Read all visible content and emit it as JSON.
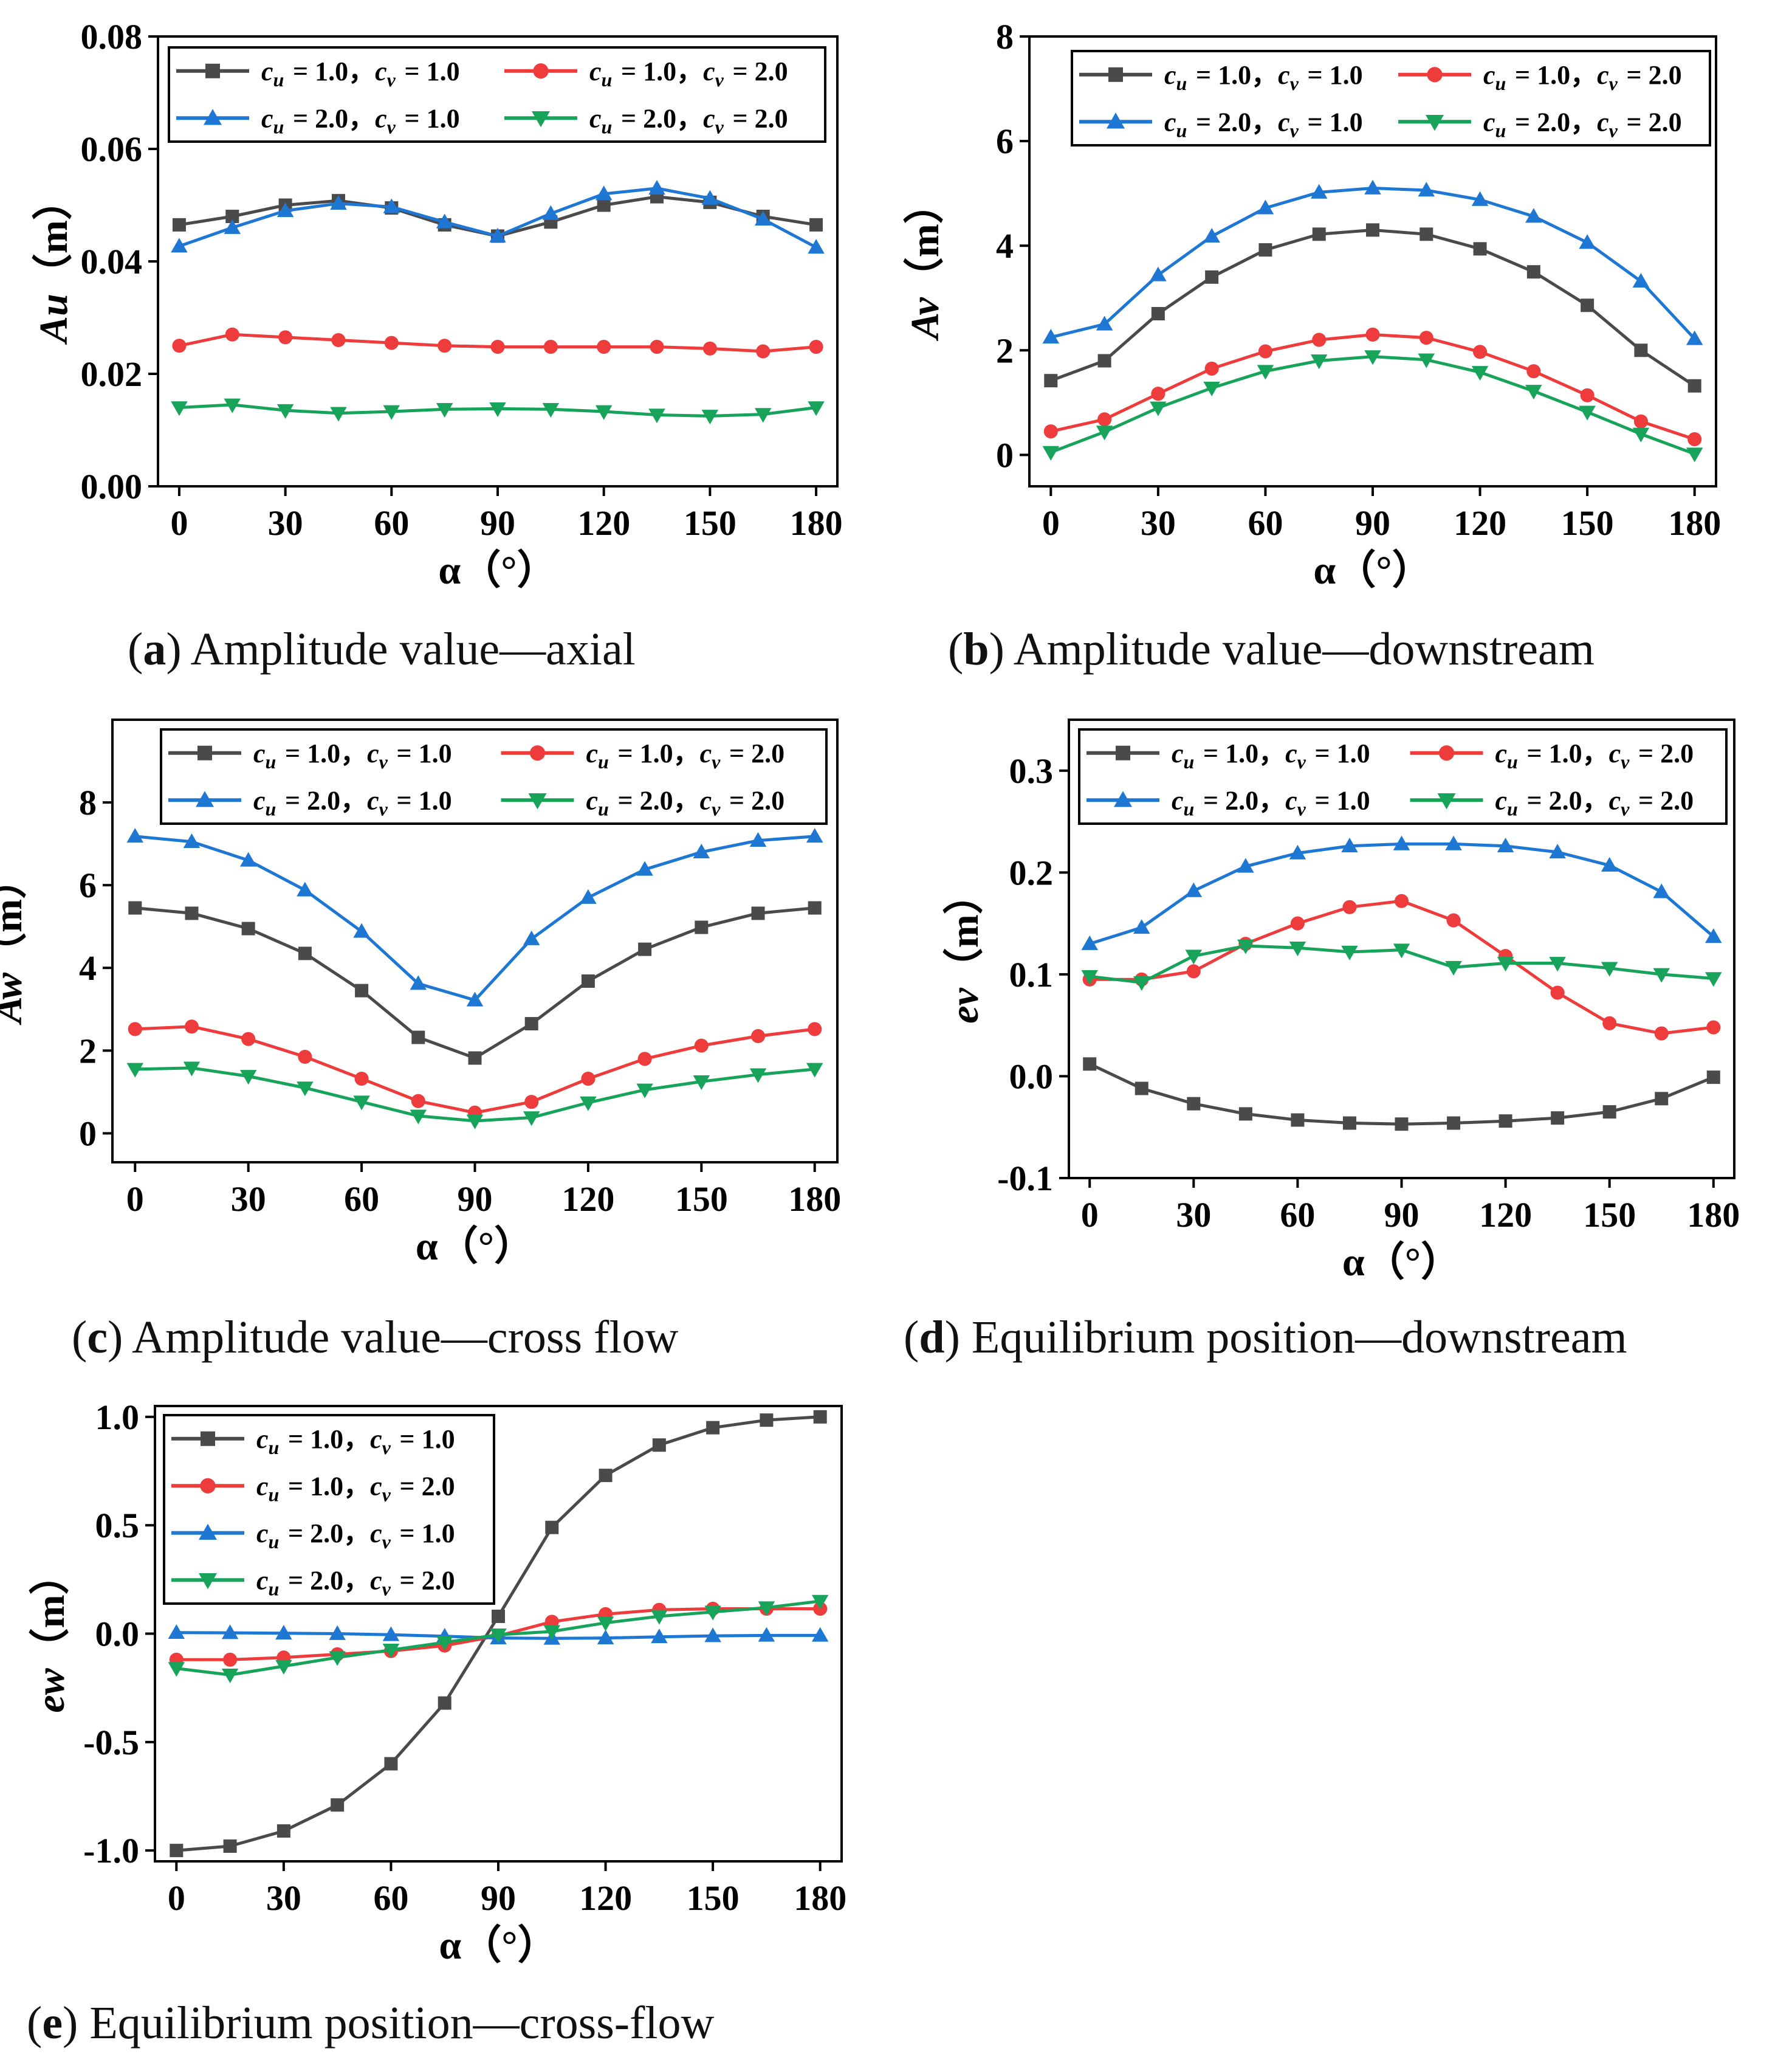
{
  "figure": {
    "captions": [
      {
        "letter": "a",
        "text": "Amplitude value—axial"
      },
      {
        "letter": "b",
        "text": "Amplitude value—downstream"
      },
      {
        "letter": "c",
        "text": "Amplitude value—cross flow"
      },
      {
        "letter": "d",
        "text": "Equilibrium position—downstream"
      },
      {
        "letter": "e",
        "text": "Equilibrium position—cross-flow"
      }
    ]
  },
  "legend_labels": [
    "c_u = 1.0，c_v = 1.0",
    "c_u = 1.0，c_v = 2.0",
    "c_u = 2.0，c_v = 1.0",
    "c_u = 2.0，c_v = 2.0"
  ],
  "series_styles": [
    {
      "color": "#4a4a4a",
      "marker": "square"
    },
    {
      "color": "#ee3b3b",
      "marker": "circle"
    },
    {
      "color": "#1f77d4",
      "marker": "triangle-up"
    },
    {
      "color": "#17a35a",
      "marker": "triangle-down"
    }
  ],
  "chart_data": [
    {
      "type": "line",
      "panel": "a",
      "xlabel": "α（°）",
      "ylabel": "Au（m）",
      "x": [
        0,
        15,
        30,
        45,
        60,
        75,
        90,
        105,
        120,
        135,
        150,
        165,
        180
      ],
      "xticks": [
        "0",
        "30",
        "60",
        "90",
        "120",
        "150",
        "180"
      ],
      "yticks": [
        "0.00",
        "0.02",
        "0.04",
        "0.06",
        "0.08"
      ],
      "ylim": [
        0,
        0.08
      ],
      "legend": "top, 2 columns",
      "series": [
        {
          "name": "c_u = 1.0，c_v = 1.0",
          "values": [
            0.0465,
            0.048,
            0.05,
            0.0508,
            0.0495,
            0.0465,
            0.0445,
            0.047,
            0.05,
            0.0515,
            0.0505,
            0.048,
            0.0465
          ]
        },
        {
          "name": "c_u = 1.0，c_v = 2.0",
          "values": [
            0.025,
            0.027,
            0.0265,
            0.026,
            0.0255,
            0.025,
            0.0248,
            0.0248,
            0.0248,
            0.0248,
            0.0245,
            0.024,
            0.0248
          ]
        },
        {
          "name": "c_u = 2.0，c_v = 1.0",
          "values": [
            0.0427,
            0.046,
            0.049,
            0.0503,
            0.0497,
            0.047,
            0.0445,
            0.0485,
            0.052,
            0.053,
            0.0512,
            0.0475,
            0.0425
          ]
        },
        {
          "name": "c_u = 2.0，c_v = 2.0",
          "values": [
            0.014,
            0.0145,
            0.0135,
            0.013,
            0.0133,
            0.0137,
            0.0138,
            0.0137,
            0.0133,
            0.0127,
            0.0125,
            0.0128,
            0.014
          ]
        }
      ]
    },
    {
      "type": "line",
      "panel": "b",
      "xlabel": "α（°）",
      "ylabel": "Av（m）",
      "x": [
        0,
        15,
        30,
        45,
        60,
        75,
        90,
        105,
        120,
        135,
        150,
        165,
        180
      ],
      "xticks": [
        "0",
        "30",
        "60",
        "90",
        "120",
        "150",
        "180"
      ],
      "yticks": [
        "0",
        "2",
        "4",
        "6",
        "8"
      ],
      "ylim": [
        -0.6,
        8
      ],
      "legend": "top, 2 columns",
      "series": [
        {
          "name": "c_u = 1.0，c_v = 1.0",
          "values": [
            1.42,
            1.8,
            2.7,
            3.4,
            3.92,
            4.22,
            4.3,
            4.22,
            3.94,
            3.5,
            2.86,
            2.0,
            1.32
          ]
        },
        {
          "name": "c_u = 1.0，c_v = 2.0",
          "values": [
            0.45,
            0.68,
            1.17,
            1.65,
            1.98,
            2.2,
            2.3,
            2.24,
            1.97,
            1.6,
            1.14,
            0.64,
            0.3
          ]
        },
        {
          "name": "c_u = 2.0，c_v = 1.0",
          "values": [
            2.25,
            2.5,
            3.44,
            4.18,
            4.72,
            5.02,
            5.1,
            5.06,
            4.88,
            4.56,
            4.06,
            3.32,
            2.22
          ]
        },
        {
          "name": "c_u = 2.0，c_v = 2.0",
          "values": [
            0.05,
            0.44,
            0.9,
            1.28,
            1.6,
            1.8,
            1.88,
            1.82,
            1.58,
            1.22,
            0.82,
            0.4,
            0.02
          ]
        }
      ]
    },
    {
      "type": "line",
      "panel": "c",
      "xlabel": "α（°）",
      "ylabel": "Aw（m）",
      "x": [
        0,
        15,
        30,
        45,
        60,
        75,
        90,
        105,
        120,
        135,
        150,
        165,
        180
      ],
      "xticks": [
        "0",
        "30",
        "60",
        "90",
        "120",
        "150",
        "180"
      ],
      "yticks": [
        "0",
        "2",
        "4",
        "6",
        "8"
      ],
      "ylim": [
        -0.7,
        10
      ],
      "legend": "top, 2 columns",
      "series": [
        {
          "name": "c_u = 1.0，c_v = 1.0",
          "values": [
            5.45,
            5.32,
            4.95,
            4.35,
            3.45,
            2.32,
            1.82,
            2.65,
            3.68,
            4.45,
            4.98,
            5.32,
            5.45
          ]
        },
        {
          "name": "c_u = 1.0，c_v = 2.0",
          "values": [
            2.52,
            2.58,
            2.28,
            1.85,
            1.32,
            0.78,
            0.5,
            0.76,
            1.32,
            1.8,
            2.12,
            2.35,
            2.52
          ]
        },
        {
          "name": "c_u = 2.0，c_v = 1.0",
          "values": [
            7.18,
            7.05,
            6.6,
            5.88,
            4.88,
            3.62,
            3.22,
            4.7,
            5.7,
            6.38,
            6.8,
            7.08,
            7.18
          ]
        },
        {
          "name": "c_u = 2.0，c_v = 2.0",
          "values": [
            1.55,
            1.58,
            1.38,
            1.1,
            0.76,
            0.42,
            0.3,
            0.38,
            0.74,
            1.05,
            1.25,
            1.42,
            1.55
          ]
        }
      ]
    },
    {
      "type": "line",
      "panel": "d",
      "xlabel": "α（°）",
      "ylabel": "ev（m）",
      "x": [
        0,
        15,
        30,
        45,
        60,
        75,
        90,
        105,
        120,
        135,
        150,
        165,
        180
      ],
      "xticks": [
        "0",
        "30",
        "60",
        "90",
        "120",
        "150",
        "180"
      ],
      "yticks": [
        "-0.1",
        "0.0",
        "0.1",
        "0.2",
        "0.3"
      ],
      "ylim": [
        -0.1,
        0.35
      ],
      "legend": "top, 2 columns",
      "series": [
        {
          "name": "c_u = 1.0，c_v = 1.0",
          "values": [
            0.012,
            -0.012,
            -0.027,
            -0.037,
            -0.043,
            -0.046,
            -0.047,
            -0.046,
            -0.044,
            -0.041,
            -0.035,
            -0.022,
            -0.001
          ]
        },
        {
          "name": "c_u = 1.0，c_v = 2.0",
          "values": [
            0.095,
            0.095,
            0.103,
            0.13,
            0.15,
            0.166,
            0.172,
            0.153,
            0.118,
            0.082,
            0.052,
            0.042,
            0.048
          ]
        },
        {
          "name": "c_u = 2.0，c_v = 1.0",
          "values": [
            0.13,
            0.146,
            0.182,
            0.206,
            0.219,
            0.226,
            0.228,
            0.228,
            0.226,
            0.22,
            0.207,
            0.181,
            0.137
          ]
        },
        {
          "name": "c_u = 2.0，c_v = 2.0",
          "values": [
            0.098,
            0.092,
            0.118,
            0.128,
            0.126,
            0.122,
            0.124,
            0.107,
            0.111,
            0.111,
            0.106,
            0.1,
            0.096
          ]
        }
      ]
    },
    {
      "type": "line",
      "panel": "e",
      "xlabel": "α（°）",
      "ylabel": "ew（m）",
      "x": [
        0,
        15,
        30,
        45,
        60,
        75,
        90,
        105,
        120,
        135,
        150,
        165,
        180
      ],
      "xticks": [
        "0",
        "30",
        "60",
        "90",
        "120",
        "150",
        "180"
      ],
      "yticks": [
        "-1.0",
        "-0.5",
        "0.0",
        "0.5",
        "1.0"
      ],
      "ylim": [
        -1.05,
        1.05
      ],
      "legend": "top-left, 1 column",
      "series": [
        {
          "name": "c_u = 1.0，c_v = 1.0",
          "values": [
            -1.0,
            -0.98,
            -0.91,
            -0.79,
            -0.6,
            -0.32,
            0.08,
            0.49,
            0.73,
            0.87,
            0.95,
            0.985,
            1.0
          ]
        },
        {
          "name": "c_u = 1.0，c_v = 2.0",
          "values": [
            -0.12,
            -0.12,
            -0.11,
            -0.095,
            -0.08,
            -0.055,
            -0.01,
            0.055,
            0.09,
            0.11,
            0.115,
            0.115,
            0.115
          ]
        },
        {
          "name": "c_u = 2.0，c_v = 1.0",
          "values": [
            0.005,
            0.004,
            0.002,
            0.0,
            -0.005,
            -0.012,
            -0.02,
            -0.022,
            -0.02,
            -0.015,
            -0.01,
            -0.008,
            -0.008
          ]
        },
        {
          "name": "c_u = 2.0，c_v = 2.0",
          "values": [
            -0.16,
            -0.19,
            -0.15,
            -0.11,
            -0.075,
            -0.04,
            -0.005,
            0.01,
            0.05,
            0.08,
            0.1,
            0.12,
            0.15
          ]
        }
      ]
    }
  ]
}
